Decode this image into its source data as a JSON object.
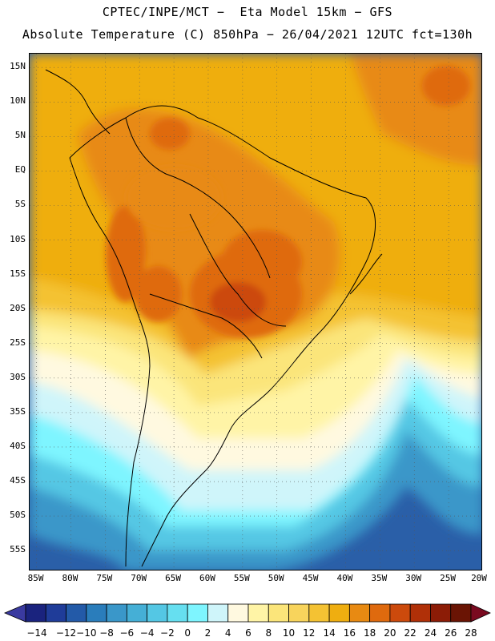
{
  "header": {
    "line1": "CPTEC/INPE/MCT −  Eta Model 15km − GFS",
    "line2": "Absolute Temperature (C) 850hPa − 26/04/2021 12UTC fct=130h"
  },
  "map": {
    "lat_labels": [
      "15N",
      "10N",
      "5N",
      "EQ",
      "5S",
      "10S",
      "15S",
      "20S",
      "25S",
      "30S",
      "35S",
      "40S",
      "45S",
      "50S",
      "55S"
    ],
    "lat_values": [
      15,
      10,
      5,
      0,
      -5,
      -10,
      -15,
      -20,
      -25,
      -30,
      -35,
      -40,
      -45,
      -50,
      -55
    ],
    "lon_labels": [
      "85W",
      "80W",
      "75W",
      "70W",
      "65W",
      "60W",
      "55W",
      "50W",
      "45W",
      "40W",
      "35W",
      "30W",
      "25W",
      "20W"
    ],
    "lon_values": [
      -85,
      -80,
      -75,
      -70,
      -65,
      -60,
      -55,
      -50,
      -45,
      -40,
      -35,
      -30,
      -25,
      -20
    ],
    "extent": {
      "lon_min": -86,
      "lon_max": -20,
      "lat_min": -58,
      "lat_max": 17
    }
  },
  "colorbar": {
    "colors": [
      "#1a237e",
      "#1f3c99",
      "#235aa8",
      "#2a7dbb",
      "#3a97c9",
      "#45afd6",
      "#54c7e4",
      "#66dff0",
      "#7ef5ff",
      "#cff5fa",
      "#fff9e0",
      "#fff4a6",
      "#fbe57a",
      "#f8d45c",
      "#f4c233",
      "#efae10",
      "#e88a12",
      "#df6a0e",
      "#cc4a0c",
      "#b03008",
      "#8c1c06",
      "#6a1404"
    ],
    "under_color": "#3a3aa0",
    "over_color": "#7a0a20",
    "ticks": [
      "-14",
      "-12",
      "-10",
      "-8",
      "-6",
      "-4",
      "-2",
      "0",
      "2",
      "4",
      "6",
      "8",
      "10",
      "12",
      "14",
      "16",
      "18",
      "20",
      "22",
      "24",
      "26",
      "28"
    ]
  }
}
